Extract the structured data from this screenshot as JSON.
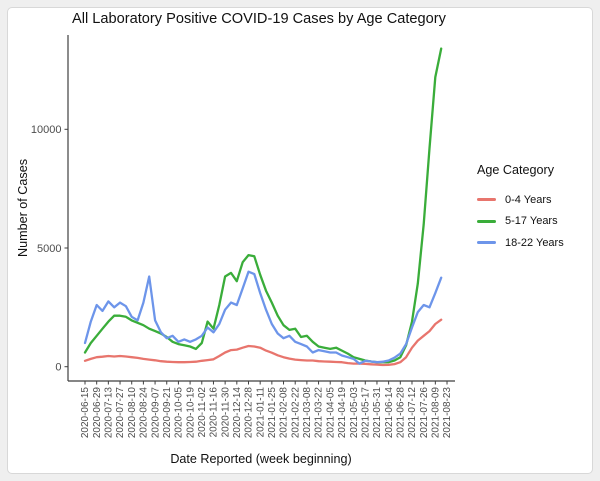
{
  "page": {
    "title": "All Laboratory Positive COVID-19 Cases by Age Category"
  },
  "chart_data": {
    "type": "line",
    "title": "All Laboratory Positive COVID-19 Cases by Age Category",
    "xlabel": "Date Reported (week beginning)",
    "ylabel": "Number of Cases",
    "legend_title": "Age Category",
    "legend_position": "right",
    "grid": false,
    "ylim": [
      0,
      14000
    ],
    "y_ticks": [
      0,
      5000,
      10000
    ],
    "y_tick_labels": [
      "0",
      "5000",
      "10000"
    ],
    "x_tick_labels": [
      "2020-06-15",
      "2020-06-29",
      "2020-07-13",
      "2020-07-27",
      "2020-08-10",
      "2020-08-24",
      "2020-09-07",
      "2020-09-21",
      "2020-10-05",
      "2020-10-19",
      "2020-11-02",
      "2020-11-16",
      "2020-11-30",
      "2020-12-14",
      "2020-12-28",
      "2021-01-11",
      "2021-01-25",
      "2021-02-08",
      "2021-02-22",
      "2021-03-08",
      "2021-03-22",
      "2021-04-05",
      "2021-04-19",
      "2021-05-03",
      "2021-05-17",
      "2021-05-31",
      "2021-06-14",
      "2021-06-28",
      "2021-07-12",
      "2021-07-26",
      "2021-08-09",
      "2021-08-23"
    ],
    "x": [
      "2020-06-15",
      "2020-06-22",
      "2020-06-29",
      "2020-07-06",
      "2020-07-13",
      "2020-07-20",
      "2020-07-27",
      "2020-08-03",
      "2020-08-10",
      "2020-08-17",
      "2020-08-24",
      "2020-08-31",
      "2020-09-07",
      "2020-09-14",
      "2020-09-21",
      "2020-09-28",
      "2020-10-05",
      "2020-10-12",
      "2020-10-19",
      "2020-10-26",
      "2020-11-02",
      "2020-11-09",
      "2020-11-16",
      "2020-11-23",
      "2020-11-30",
      "2020-12-07",
      "2020-12-14",
      "2020-12-21",
      "2020-12-28",
      "2021-01-04",
      "2021-01-11",
      "2021-01-18",
      "2021-01-25",
      "2021-02-01",
      "2021-02-08",
      "2021-02-15",
      "2021-02-22",
      "2021-03-01",
      "2021-03-08",
      "2021-03-15",
      "2021-03-22",
      "2021-03-29",
      "2021-04-05",
      "2021-04-12",
      "2021-04-19",
      "2021-04-26",
      "2021-05-03",
      "2021-05-10",
      "2021-05-17",
      "2021-05-24",
      "2021-05-31",
      "2021-06-07",
      "2021-06-14",
      "2021-06-21",
      "2021-06-28",
      "2021-07-05",
      "2021-07-12",
      "2021-07-19",
      "2021-07-26",
      "2021-08-02",
      "2021-08-09",
      "2021-08-16"
    ],
    "series": [
      {
        "name": "0-4 Years",
        "color": "#E8756D",
        "values": [
          250,
          330,
          400,
          420,
          450,
          430,
          450,
          430,
          400,
          370,
          330,
          300,
          270,
          230,
          210,
          200,
          190,
          190,
          200,
          210,
          250,
          280,
          310,
          450,
          600,
          700,
          720,
          800,
          870,
          850,
          800,
          680,
          590,
          480,
          400,
          340,
          300,
          280,
          260,
          260,
          230,
          220,
          210,
          200,
          190,
          150,
          130,
          130,
          120,
          100,
          90,
          70,
          80,
          110,
          190,
          400,
          800,
          1100,
          1300,
          1500,
          1800,
          1980
        ]
      },
      {
        "name": "5-17 Years",
        "color": "#3AAD3A",
        "values": [
          600,
          1000,
          1300,
          1600,
          1900,
          2150,
          2150,
          2100,
          1950,
          1850,
          1750,
          1600,
          1500,
          1400,
          1250,
          1050,
          950,
          900,
          850,
          750,
          1000,
          1900,
          1600,
          2600,
          3800,
          3950,
          3600,
          4400,
          4700,
          4650,
          3870,
          3200,
          2700,
          2150,
          1750,
          1550,
          1600,
          1250,
          1300,
          1050,
          850,
          800,
          750,
          800,
          680,
          550,
          400,
          330,
          260,
          220,
          190,
          190,
          190,
          260,
          400,
          900,
          1900,
          3500,
          6000,
          9200,
          12200,
          13400
        ]
      },
      {
        "name": "18-22 Years",
        "color": "#6D95EA",
        "values": [
          1000,
          1900,
          2600,
          2350,
          2750,
          2500,
          2700,
          2550,
          2100,
          1950,
          2700,
          3800,
          1950,
          1450,
          1200,
          1300,
          1050,
          1150,
          1050,
          1150,
          1300,
          1650,
          1450,
          1800,
          2400,
          2700,
          2600,
          3300,
          4000,
          3900,
          3100,
          2400,
          1800,
          1400,
          1200,
          1300,
          1050,
          950,
          850,
          600,
          700,
          650,
          600,
          600,
          470,
          400,
          330,
          130,
          250,
          220,
          190,
          210,
          260,
          380,
          550,
          950,
          1650,
          2300,
          2600,
          2500,
          3100,
          3750
        ]
      }
    ]
  }
}
